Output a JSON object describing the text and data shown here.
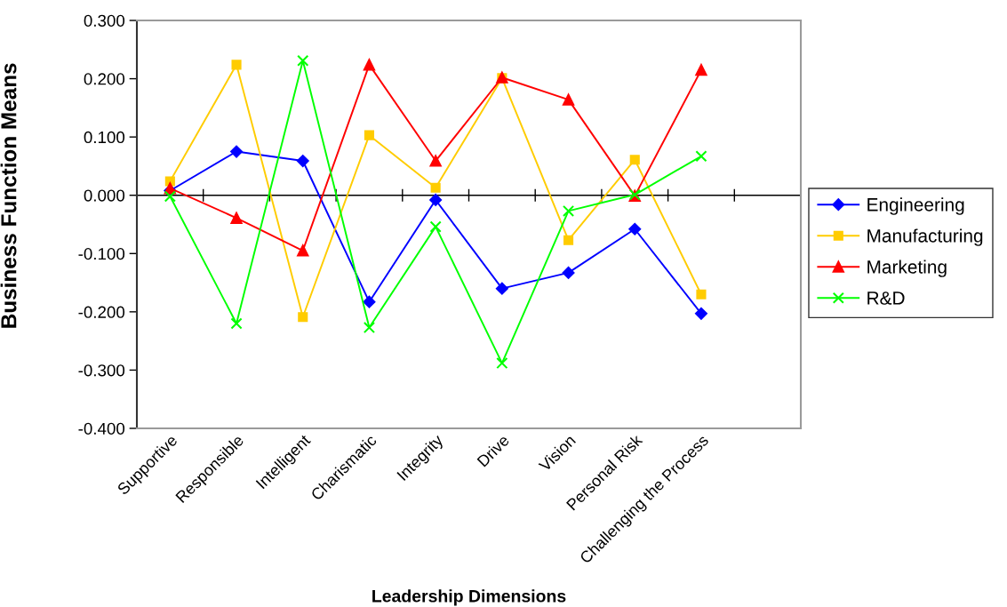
{
  "chart_data": {
    "type": "line",
    "xlabel": "Leadership Dimensions",
    "ylabel": "Business Function Means",
    "categories": [
      "Supportive",
      "Responsible",
      "Intelligent",
      "Charismatic",
      "Integrity",
      "Drive",
      "Vision",
      "Personal Risk",
      "Challenging the Process",
      null
    ],
    "series": [
      {
        "name": "Engineering",
        "color": "#0000ff",
        "marker": "diamond",
        "values": [
          0.008,
          0.075,
          0.059,
          -0.183,
          -0.008,
          -0.16,
          -0.133,
          -0.058,
          -0.203,
          null
        ]
      },
      {
        "name": "Manufacturing",
        "color": "#ffcc00",
        "marker": "square",
        "values": [
          0.024,
          0.224,
          -0.209,
          0.103,
          0.013,
          0.201,
          -0.077,
          0.061,
          -0.17,
          null
        ]
      },
      {
        "name": "Marketing",
        "color": "#ff0000",
        "marker": "triangle",
        "values": [
          0.012,
          -0.039,
          -0.095,
          0.224,
          0.059,
          0.202,
          0.164,
          -0.001,
          0.215,
          null
        ]
      },
      {
        "name": "R&D",
        "color": "#00ff00",
        "marker": "cross",
        "values": [
          -0.002,
          -0.22,
          0.231,
          -0.227,
          -0.054,
          -0.288,
          -0.027,
          0.001,
          0.067,
          null
        ]
      }
    ],
    "ylim": [
      -0.4,
      0.3
    ],
    "yticks": [
      {
        "value": -0.4,
        "label": "-0.400"
      },
      {
        "value": -0.3,
        "label": "-0.300"
      },
      {
        "value": -0.2,
        "label": "-0.200"
      },
      {
        "value": -0.1,
        "label": "-0.100"
      },
      {
        "value": 0,
        "label": "0.000"
      },
      {
        "value": 0.1,
        "label": "0.100"
      },
      {
        "value": 0.2,
        "label": "0.200"
      },
      {
        "value": 0.3,
        "label": "0.300"
      }
    ],
    "line_style": "solid",
    "legend": "right"
  }
}
